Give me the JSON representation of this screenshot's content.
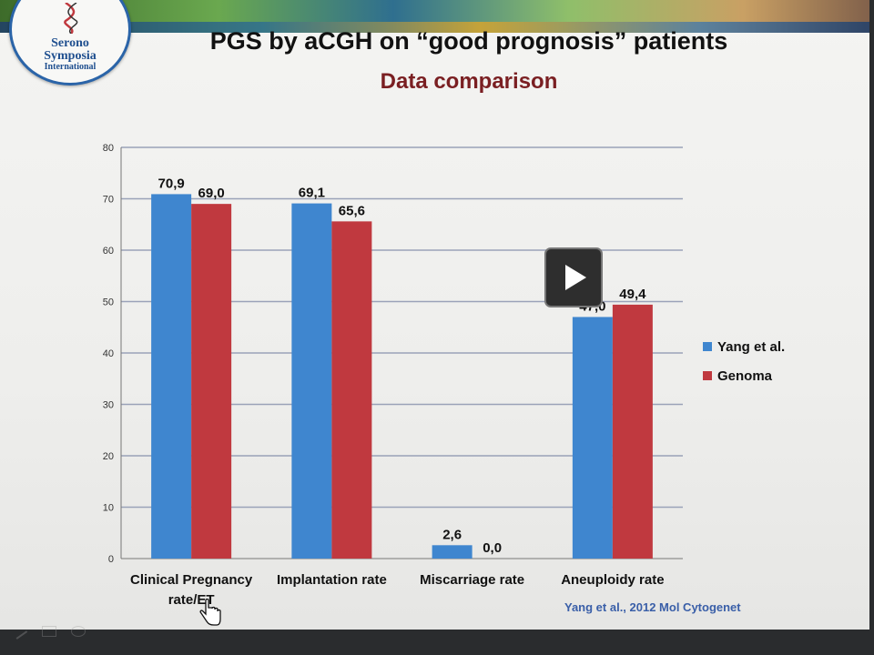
{
  "slide": {
    "title": "PGS by aCGH on “good prognosis” patients",
    "subtitle": "Data comparison",
    "citation": "Yang et al., 2012 Mol Cytogenet",
    "logo": {
      "line1": "Serono",
      "line2": "Symposia",
      "line3": "International"
    }
  },
  "colors": {
    "series1": "#3f86cf",
    "series2": "#c0393f",
    "subtitle": "#7a1f22",
    "citation": "#3a5fa8"
  },
  "icons": {
    "overlay": "play-icon",
    "cursor": "hand-pointer-icon"
  },
  "chart_data": {
    "type": "bar",
    "categories": [
      "Clinical Pregnancy rate/ET",
      "Implantation rate",
      "Miscarriage rate",
      "Aneuploidy rate"
    ],
    "category_lines": [
      [
        "Clinical Pregnancy",
        "rate/ET"
      ],
      [
        "Implantation rate"
      ],
      [
        "Miscarriage rate"
      ],
      [
        "Aneuploidy rate"
      ]
    ],
    "series": [
      {
        "name": "Yang et al.",
        "values": [
          70.9,
          69.1,
          2.6,
          47.0
        ],
        "labels": [
          "70,9",
          "69,1",
          "2,6",
          "47,0"
        ]
      },
      {
        "name": "Genoma",
        "values": [
          69.0,
          65.6,
          0.0,
          49.4
        ],
        "labels": [
          "69,0",
          "65,6",
          "0,0",
          "49,4"
        ]
      }
    ],
    "ylim": [
      0,
      80
    ],
    "yticks": [
      0,
      10,
      20,
      30,
      40,
      50,
      60,
      70,
      80
    ],
    "grid": true,
    "legend_position": "right",
    "xlabel": "",
    "ylabel": ""
  }
}
